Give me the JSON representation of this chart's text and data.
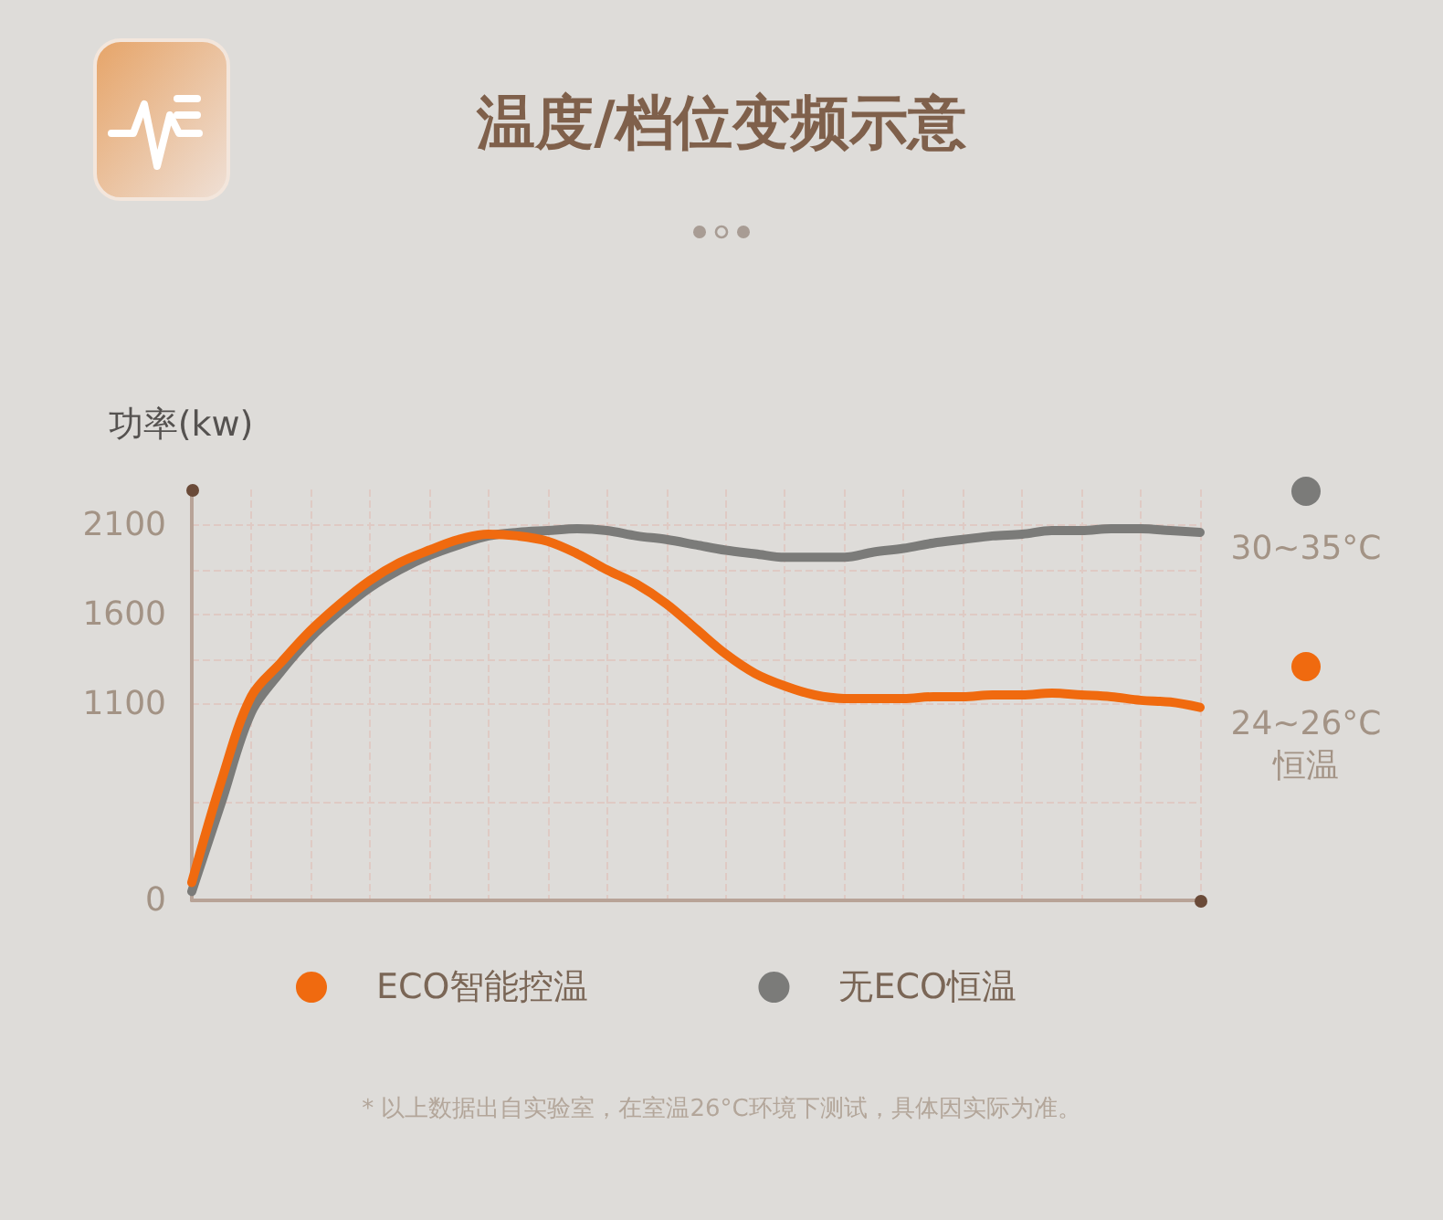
{
  "chart_data": {
    "type": "line",
    "title": "温度/档位变频示意",
    "ylabel": "功率(kw)",
    "categories": [
      null,
      null,
      null,
      null,
      null,
      null,
      null,
      null,
      null,
      null,
      null,
      null,
      null,
      null,
      null,
      null,
      null,
      null,
      null,
      null,
      null,
      null,
      null,
      null,
      null,
      null,
      null,
      null,
      null,
      null,
      null,
      null,
      null,
      null,
      null
    ],
    "series": [
      {
        "name": "ECO智能控温",
        "color": "#f06a0f",
        "values": [
          100,
          670,
          1140,
          1330,
          1510,
          1660,
          1790,
          1890,
          1960,
          2020,
          2050,
          2040,
          2010,
          1940,
          1850,
          1770,
          1660,
          1520,
          1380,
          1270,
          1200,
          1150,
          1130,
          1130,
          1130,
          1140,
          1140,
          1150,
          1150,
          1160,
          1150,
          1140,
          1120,
          1110,
          1080
        ]
      },
      {
        "name": "无ECO恒温",
        "color": "#7b7b79",
        "values": [
          50,
          550,
          1050,
          1280,
          1470,
          1620,
          1750,
          1850,
          1930,
          1990,
          2040,
          2060,
          2070,
          2080,
          2070,
          2040,
          2020,
          1990,
          1960,
          1940,
          1920,
          1920,
          1920,
          1950,
          1970,
          2000,
          2020,
          2040,
          2050,
          2070,
          2070,
          2080,
          2080,
          2070,
          2060
        ]
      }
    ],
    "ylim": [
      0,
      2300
    ],
    "yticks": [
      0,
      {
        "value": 550,
        "label": null
      },
      1100,
      {
        "value": 1350,
        "label": null
      },
      1600,
      {
        "value": 1850,
        "label": null
      },
      2100
    ],
    "grid": true,
    "legend": "bottom",
    "tick_labels": "y",
    "annotations": [
      "30~35°C",
      "24~26°C\n恒温",
      "* 以上数据出自实验室，在室温26°C环境下测试，具体因实际为准。"
    ]
  }
}
